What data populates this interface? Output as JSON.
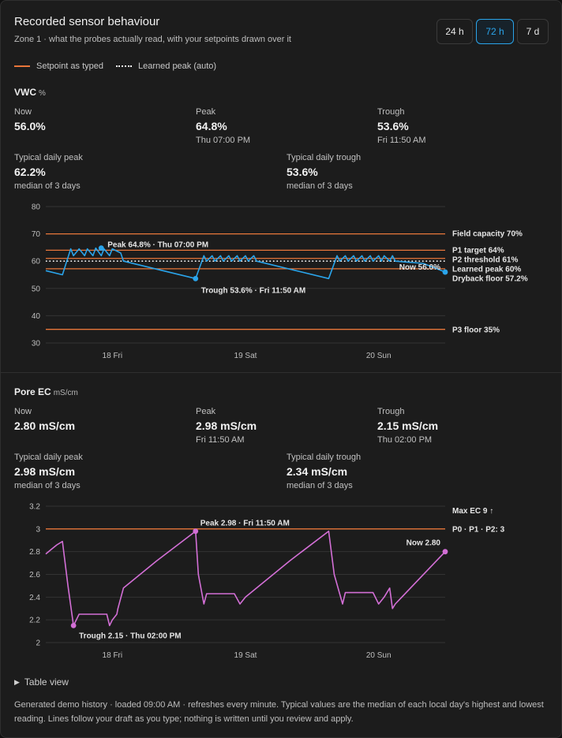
{
  "header": {
    "title": "Recorded sensor behaviour",
    "subtitle": "Zone 1 · what the probes actually read, with your setpoints drawn over it",
    "ranges": [
      "24 h",
      "72 h",
      "7 d"
    ],
    "active_range": "72 h"
  },
  "legend": {
    "setpoint": "Setpoint as typed",
    "learned": "Learned peak (auto)"
  },
  "colors": {
    "setpoint": "#e8763a",
    "learned": "#ffffff",
    "vwc_series": "#2aa4ea",
    "ec_series": "#d36fd6",
    "accent": "#2aa4ea"
  },
  "vwc": {
    "title": "VWC",
    "unit": "%",
    "stats": {
      "now_label": "Now",
      "now_value": "56.0%",
      "peak_label": "Peak",
      "peak_value": "64.8%",
      "peak_time": "Thu 07:00 PM",
      "trough_label": "Trough",
      "trough_value": "53.6%",
      "trough_time": "Fri 11:50 AM",
      "typ_peak_label": "Typical daily peak",
      "typ_peak_value": "62.2%",
      "typ_peak_sub": "median of 3 days",
      "typ_trough_label": "Typical daily trough",
      "typ_trough_value": "53.6%",
      "typ_trough_sub": "median of 3 days"
    }
  },
  "ec": {
    "title": "Pore EC",
    "unit": "mS/cm",
    "stats": {
      "now_label": "Now",
      "now_value": "2.80 mS/cm",
      "peak_label": "Peak",
      "peak_value": "2.98 mS/cm",
      "peak_time": "Fri 11:50 AM",
      "trough_label": "Trough",
      "trough_value": "2.15 mS/cm",
      "trough_time": "Thu 02:00 PM",
      "typ_peak_label": "Typical daily peak",
      "typ_peak_value": "2.98 mS/cm",
      "typ_peak_sub": "median of 3 days",
      "typ_trough_label": "Typical daily trough",
      "typ_trough_value": "2.34 mS/cm",
      "typ_trough_sub": "median of 3 days"
    }
  },
  "chart_data": [
    {
      "type": "line",
      "name": "vwc",
      "ylim": [
        30,
        80
      ],
      "yticks": [
        80,
        70,
        60,
        50,
        40,
        30
      ],
      "xlim": [
        0,
        72
      ],
      "xticks": [
        {
          "x": 12,
          "label": "18 Fri"
        },
        {
          "x": 36,
          "label": "19 Sat"
        },
        {
          "x": 60,
          "label": "20 Sun"
        }
      ],
      "grid": true,
      "series": [
        {
          "x": [
            0,
            3,
            4.5,
            5,
            6,
            7,
            7.5,
            8.5,
            9,
            10,
            10.5,
            11.5,
            12,
            13,
            13.5,
            14,
            27,
            28.5,
            29,
            30,
            30.5,
            31.5,
            32,
            33,
            33.5,
            34.5,
            35,
            36,
            36.5,
            37.5,
            38,
            51,
            52.5,
            53,
            54,
            54.5,
            55.5,
            56,
            57,
            57.5,
            58.5,
            59,
            60,
            60.5,
            61,
            62,
            62.5,
            63,
            68,
            72
          ],
          "y": [
            56.5,
            55,
            64.5,
            62,
            64.5,
            62,
            64.5,
            62,
            64.8,
            62,
            64.5,
            62,
            64.5,
            63.5,
            63,
            60,
            53.6,
            62,
            60,
            62,
            60,
            62,
            60,
            62,
            60,
            62,
            60,
            62,
            60,
            62,
            60,
            53.6,
            62,
            60,
            62,
            60,
            62,
            60,
            62,
            60,
            62,
            60,
            62,
            60,
            62,
            60,
            62,
            60,
            59.2,
            56.0
          ]
        }
      ],
      "reference_lines": [
        {
          "y": 70,
          "label": "Field capacity 70%",
          "style": "setpoint"
        },
        {
          "y": 64,
          "label": "P1 target 64%",
          "style": "setpoint"
        },
        {
          "y": 61,
          "label": "P2 threshold 61%",
          "style": "setpoint"
        },
        {
          "y": 60,
          "label": "Learned peak 60%",
          "style": "learned"
        },
        {
          "y": 57.2,
          "label": "Dryback floor 57.2%",
          "style": "setpoint"
        },
        {
          "y": 35,
          "label": "P3 floor 35%",
          "style": "setpoint"
        }
      ],
      "annotations": [
        {
          "x": 10,
          "y": 64.8,
          "label": "Peak 64.8% · Thu 07:00 PM"
        },
        {
          "x": 27,
          "y": 53.6,
          "label": "Trough 53.6% · Fri 11:50 AM"
        },
        {
          "x": 72,
          "y": 56.0,
          "label": "Now 56.0%"
        }
      ]
    },
    {
      "type": "line",
      "name": "ec",
      "ylim": [
        2,
        3.2
      ],
      "yticks": [
        3.2,
        3,
        2.8,
        2.6,
        2.4,
        2.2,
        2
      ],
      "xlim": [
        0,
        72
      ],
      "xticks": [
        {
          "x": 12,
          "label": "18 Fri"
        },
        {
          "x": 36,
          "label": "19 Sat"
        },
        {
          "x": 60,
          "label": "20 Sun"
        }
      ],
      "grid": true,
      "series": [
        {
          "x": [
            0,
            1,
            2,
            3,
            4,
            5,
            5.5,
            6,
            7,
            8,
            9,
            10,
            11,
            11.5,
            12,
            12.8,
            13,
            14,
            20,
            27,
            27.5,
            28.5,
            29,
            34,
            35,
            36,
            44,
            51,
            52,
            53.5,
            54,
            59,
            60,
            61,
            62,
            62.5,
            63,
            72
          ],
          "y": [
            2.78,
            2.82,
            2.86,
            2.89,
            2.5,
            2.15,
            2.2,
            2.25,
            2.25,
            2.25,
            2.25,
            2.25,
            2.25,
            2.15,
            2.2,
            2.25,
            2.3,
            2.48,
            2.72,
            2.98,
            2.6,
            2.34,
            2.43,
            2.43,
            2.34,
            2.4,
            2.72,
            2.98,
            2.6,
            2.34,
            2.44,
            2.44,
            2.34,
            2.4,
            2.48,
            2.3,
            2.34,
            2.8
          ]
        }
      ],
      "reference_lines": [
        {
          "y": 3,
          "label": "P0 · P1 · P2: 3",
          "style": "setpoint"
        }
      ],
      "edge_labels": [
        {
          "label": "Max EC 9 ↑"
        }
      ],
      "annotations": [
        {
          "x": 27,
          "y": 2.98,
          "label": "Peak 2.98 · Fri 11:50 AM"
        },
        {
          "x": 5,
          "y": 2.15,
          "label": "Trough 2.15 · Thu 02:00 PM"
        },
        {
          "x": 72,
          "y": 2.8,
          "label": "Now 2.80"
        }
      ]
    }
  ],
  "table_toggle": "Table view",
  "footer": "Generated demo history · loaded 09:00 AM · refreshes every minute. Typical values are the median of each local day's highest and lowest reading. Lines follow your draft as you type; nothing is written until you review and apply."
}
